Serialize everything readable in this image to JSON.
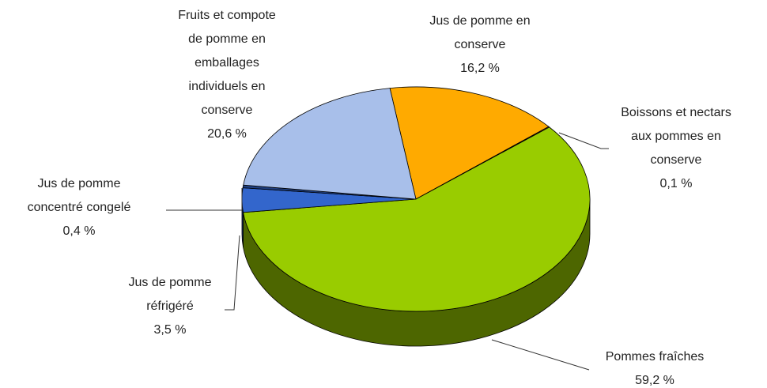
{
  "chart_data": {
    "type": "pie3d",
    "categories": [
      "Jus de pomme en\nconserve",
      "Boissons et nectars\naux pommes en\nconserve",
      "Pommes fraîches",
      "Jus de pomme\nréfrigéré",
      "Jus de pomme\nconcentré congelé",
      "Fruits et compote\nde pomme en\nemballages\nindividuels en\nconserve"
    ],
    "values": [
      16.2,
      0.1,
      59.2,
      3.5,
      0.4,
      20.6
    ],
    "value_labels": [
      "16,2 %",
      "0,1 %",
      "59,2 %",
      "3,5 %",
      "0,4 %",
      "20,6 %"
    ],
    "colors": [
      "#ffaa00",
      "#cc5500",
      "#99cc00",
      "#3366cc",
      "#1f3f80",
      "#a8bfea"
    ],
    "side_colors": [
      "#7f5500",
      "#662b00",
      "#4d6600",
      "#1a3366",
      "#10203f",
      "#54607a"
    ]
  }
}
